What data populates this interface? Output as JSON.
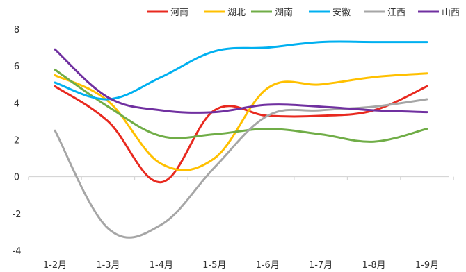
{
  "chart_data": {
    "type": "line",
    "categories": [
      "1-2月",
      "1-3月",
      "1-4月",
      "1-5月",
      "1-6月",
      "1-7月",
      "1-8月",
      "1-9月"
    ],
    "ylim": [
      -4,
      8
    ],
    "yticks": [
      "8",
      "6",
      "4",
      "2",
      "0",
      "-2",
      "-4"
    ],
    "legend_position": "top-right",
    "series": [
      {
        "name": "河南",
        "color": "#e8291f",
        "values": [
          4.9,
          3.0,
          -0.3,
          3.6,
          3.3,
          3.3,
          3.6,
          4.9
        ]
      },
      {
        "name": "湖北",
        "color": "#ffc000",
        "values": [
          5.5,
          4.1,
          0.7,
          1.0,
          4.8,
          5.0,
          5.4,
          5.6
        ]
      },
      {
        "name": "湖南",
        "color": "#70ad47",
        "values": [
          5.8,
          3.8,
          2.2,
          2.3,
          2.6,
          2.3,
          1.9,
          2.6
        ]
      },
      {
        "name": "安徽",
        "color": "#00b0f0",
        "values": [
          5.1,
          4.2,
          5.4,
          6.8,
          7.0,
          7.3,
          7.3,
          7.3
        ]
      },
      {
        "name": "江西",
        "color": "#a6a6a6",
        "values": [
          2.5,
          -2.8,
          -2.6,
          0.5,
          3.3,
          3.6,
          3.8,
          4.2
        ]
      },
      {
        "name": "山西",
        "color": "#7030a0",
        "values": [
          6.9,
          4.3,
          3.6,
          3.5,
          3.9,
          3.8,
          3.6,
          3.5
        ]
      }
    ]
  }
}
